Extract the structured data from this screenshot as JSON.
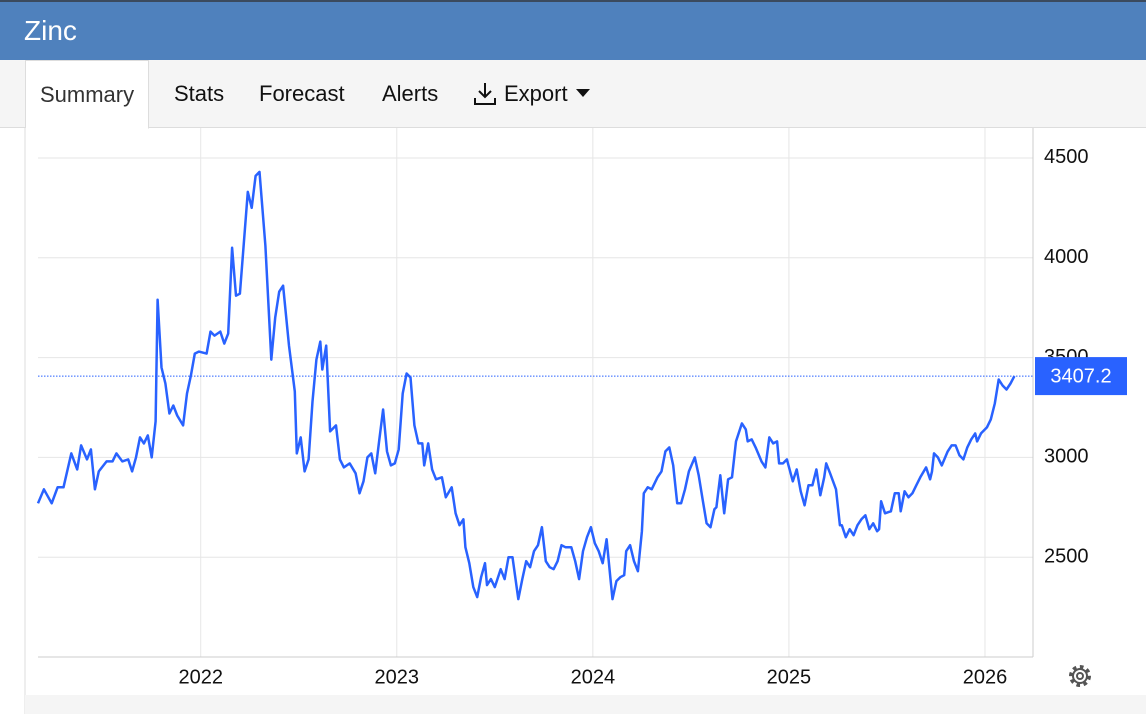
{
  "header": {
    "title": "Zinc"
  },
  "tabs": [
    "Summary",
    "Stats",
    "Forecast",
    "Alerts",
    "Export"
  ],
  "chart_data": {
    "type": "line",
    "x": [
      2021.17,
      2021.2,
      2021.24,
      2021.27,
      2021.3,
      2021.34,
      2021.37,
      2021.39,
      2021.42,
      2021.44,
      2021.46,
      2021.48,
      2021.52,
      2021.55,
      2021.57,
      2021.6,
      2021.63,
      2021.65,
      2021.67,
      2021.69,
      2021.71,
      2021.73,
      2021.75,
      2021.77,
      2021.78,
      2021.8,
      2021.82,
      2021.84,
      2021.86,
      2021.88,
      2021.91,
      2021.93,
      2021.95,
      2021.97,
      2021.99,
      2022.03,
      2022.05,
      2022.07,
      2022.1,
      2022.12,
      2022.14,
      2022.16,
      2022.18,
      2022.2,
      2022.24,
      2022.26,
      2022.28,
      2022.3,
      2022.33,
      2022.36,
      2022.38,
      2022.4,
      2022.42,
      2022.45,
      2022.48,
      2022.49,
      2022.51,
      2022.53,
      2022.55,
      2022.57,
      2022.59,
      2022.61,
      2022.62,
      2022.64,
      2022.66,
      2022.69,
      2022.71,
      2022.73,
      2022.76,
      2022.79,
      2022.81,
      2022.83,
      2022.85,
      2022.87,
      2022.89,
      2022.91,
      2022.93,
      2022.95,
      2022.97,
      2022.99,
      2023.01,
      2023.03,
      2023.05,
      2023.07,
      2023.09,
      2023.11,
      2023.13,
      2023.14,
      2023.16,
      2023.18,
      2023.2,
      2023.23,
      2023.25,
      2023.28,
      2023.3,
      2023.32,
      2023.34,
      2023.35,
      2023.37,
      2023.39,
      2023.41,
      2023.43,
      2023.45,
      2023.46,
      2023.48,
      2023.5,
      2023.53,
      2023.55,
      2023.57,
      2023.59,
      2023.62,
      2023.64,
      2023.66,
      2023.68,
      2023.7,
      2023.72,
      2023.74,
      2023.76,
      2023.78,
      2023.8,
      2023.82,
      2023.84,
      2023.86,
      2023.89,
      2023.91,
      2023.93,
      2023.95,
      2023.97,
      2023.99,
      2024.01,
      2024.03,
      2024.05,
      2024.07,
      2024.09,
      2024.1,
      2024.12,
      2024.14,
      2024.16,
      2024.17,
      2024.19,
      2024.21,
      2024.23,
      2024.25,
      2024.26,
      2024.28,
      2024.3,
      2024.33,
      2024.35,
      2024.37,
      2024.39,
      2024.41,
      2024.43,
      2024.45,
      2024.47,
      2024.49,
      2024.52,
      2024.54,
      2024.56,
      2024.58,
      2024.6,
      2024.62,
      2024.63,
      2024.65,
      2024.67,
      2024.69,
      2024.71,
      2024.73,
      2024.76,
      2024.78,
      2024.79,
      2024.81,
      2024.83,
      2024.86,
      2024.88,
      2024.9,
      2024.92,
      2024.94,
      2024.95,
      2024.97,
      2024.99,
      2025.02,
      2025.04,
      2025.06,
      2025.08,
      2025.1,
      2025.12,
      2025.14,
      2025.16,
      2025.18,
      2025.19,
      2025.21,
      2025.24,
      2025.26,
      2025.27,
      2025.29,
      2025.31,
      2025.33,
      2025.35,
      2025.37,
      2025.39,
      2025.41,
      2025.43,
      2025.45,
      2025.46,
      2025.47,
      2025.49,
      2025.52,
      2025.54,
      2025.56,
      2025.57,
      2025.59,
      2025.61,
      2025.63,
      2025.65,
      2025.67,
      2025.7,
      2025.72,
      2025.73,
      2025.74,
      2025.76,
      2025.78,
      2025.81,
      2025.83,
      2025.85,
      2025.87,
      2025.89,
      2025.91,
      2025.93,
      2025.95,
      2025.96,
      2025.98,
      2026.01,
      2026.03,
      2026.05,
      2026.07,
      2026.09,
      2026.11,
      2026.13,
      2026.15
    ],
    "series": [
      {
        "color": "#2962ff",
        "values": [
          2770,
          2840,
          2770,
          2850,
          2850,
          3020,
          2940,
          3060,
          2990,
          3040,
          2840,
          2930,
          2980,
          2980,
          3020,
          2980,
          2990,
          2930,
          3000,
          3100,
          3070,
          3110,
          3000,
          3180,
          3790,
          3450,
          3370,
          3220,
          3260,
          3210,
          3160,
          3320,
          3410,
          3520,
          3530,
          3520,
          3630,
          3610,
          3630,
          3570,
          3620,
          4050,
          3810,
          3820,
          4330,
          4250,
          4410,
          4430,
          4060,
          3490,
          3700,
          3830,
          3860,
          3560,
          3330,
          3020,
          3100,
          2930,
          2990,
          3280,
          3490,
          3580,
          3440,
          3560,
          3130,
          3160,
          2990,
          2950,
          2970,
          2920,
          2820,
          2880,
          3000,
          3020,
          2920,
          3080,
          3240,
          3030,
          2960,
          2970,
          3040,
          3320,
          3420,
          3400,
          3160,
          3070,
          3070,
          2960,
          3070,
          2940,
          2890,
          2900,
          2800,
          2850,
          2720,
          2660,
          2690,
          2550,
          2470,
          2350,
          2300,
          2400,
          2470,
          2360,
          2390,
          2350,
          2440,
          2390,
          2500,
          2500,
          2290,
          2390,
          2480,
          2450,
          2530,
          2560,
          2650,
          2480,
          2450,
          2440,
          2480,
          2560,
          2550,
          2550,
          2480,
          2390,
          2530,
          2600,
          2650,
          2570,
          2530,
          2470,
          2590,
          2390,
          2290,
          2380,
          2400,
          2410,
          2530,
          2560,
          2480,
          2430,
          2630,
          2820,
          2850,
          2840,
          2900,
          2930,
          3030,
          3050,
          2960,
          2770,
          2770,
          2840,
          2930,
          3000,
          2910,
          2790,
          2670,
          2650,
          2740,
          2750,
          2910,
          2720,
          2890,
          2900,
          3080,
          3170,
          3140,
          3080,
          3090,
          3050,
          2980,
          2950,
          3100,
          3070,
          3080,
          2970,
          2970,
          2990,
          2880,
          2940,
          2830,
          2760,
          2860,
          2860,
          2940,
          2810,
          2900,
          2970,
          2920,
          2840,
          2660,
          2660,
          2600,
          2640,
          2610,
          2660,
          2690,
          2710,
          2640,
          2670,
          2630,
          2640,
          2780,
          2720,
          2730,
          2820,
          2820,
          2730,
          2830,
          2800,
          2820,
          2860,
          2900,
          2950,
          2890,
          2930,
          3020,
          3000,
          2960,
          3030,
          3060,
          3060,
          3010,
          2990,
          3050,
          3090,
          3120,
          3080,
          3120,
          3150,
          3190,
          3270,
          3390,
          3360,
          3340,
          3370,
          3407.2
        ]
      }
    ],
    "xlim": [
      2021.17,
      2026.245
    ],
    "xticks": [
      2022,
      2023,
      2024,
      2025,
      2026
    ],
    "ylim": [
      2000,
      4650
    ],
    "yticks": [
      2500,
      3000,
      3500,
      4000,
      4500
    ],
    "grid": true
  }
}
